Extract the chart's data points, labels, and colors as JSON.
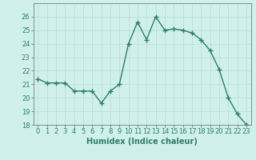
{
  "x": [
    0,
    1,
    2,
    3,
    4,
    5,
    6,
    7,
    8,
    9,
    10,
    11,
    12,
    13,
    14,
    15,
    16,
    17,
    18,
    19,
    20,
    21,
    22,
    23
  ],
  "y": [
    21.4,
    21.1,
    21.1,
    21.1,
    20.5,
    20.5,
    20.5,
    19.6,
    20.5,
    21.0,
    24.0,
    25.6,
    24.3,
    26.0,
    25.0,
    25.1,
    25.0,
    24.8,
    24.3,
    23.5,
    22.1,
    20.0,
    18.8,
    18.0
  ],
  "line_color": "#2e7d6e",
  "marker": "+",
  "marker_size": 4,
  "linewidth": 1.0,
  "bg_color": "#d0f0ee",
  "grid_color": "#b8dcd8",
  "xlabel": "Humidex (Indice chaleur)",
  "xlabel_fontsize": 7,
  "tick_fontsize": 6,
  "ylim": [
    18,
    27
  ],
  "xlim": [
    -0.5,
    23.5
  ],
  "yticks": [
    18,
    19,
    20,
    21,
    22,
    23,
    24,
    25,
    26
  ],
  "xticks": [
    0,
    1,
    2,
    3,
    4,
    5,
    6,
    7,
    8,
    9,
    10,
    11,
    12,
    13,
    14,
    15,
    16,
    17,
    18,
    19,
    20,
    21,
    22,
    23
  ]
}
